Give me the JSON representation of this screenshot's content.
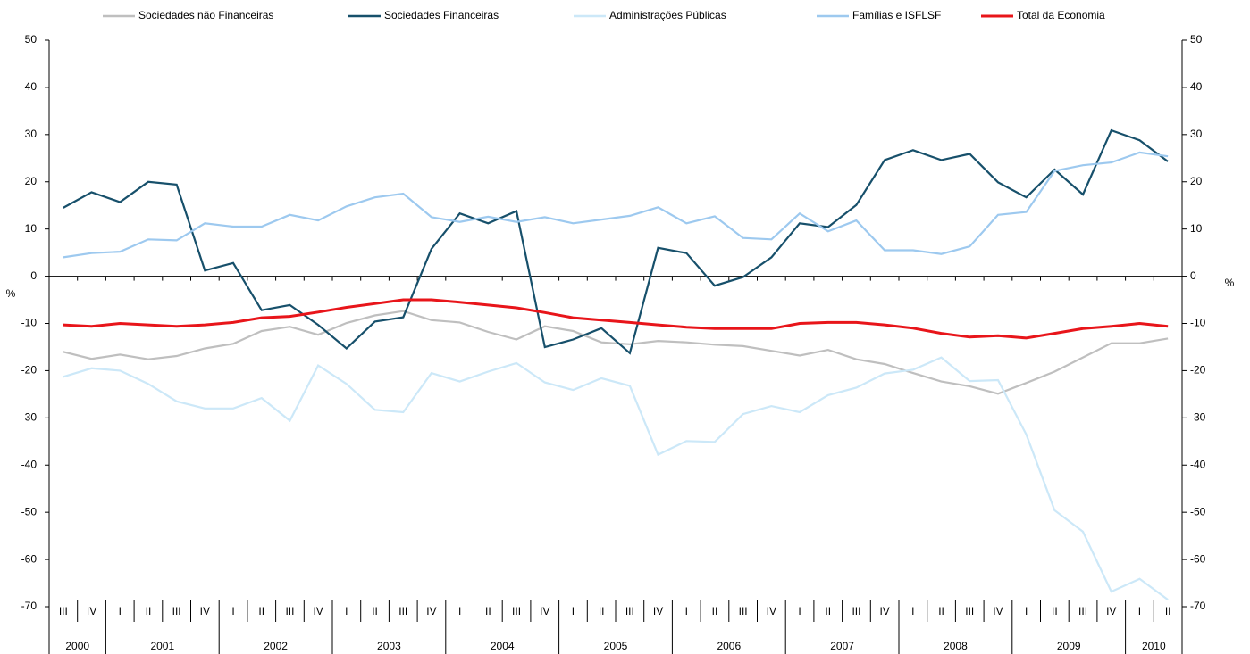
{
  "chart_data": {
    "type": "line",
    "categories": [
      "III",
      "IV",
      "I",
      "II",
      "III",
      "IV",
      "I",
      "II",
      "III",
      "IV",
      "I",
      "II",
      "III",
      "IV",
      "I",
      "II",
      "III",
      "IV",
      "I",
      "II",
      "III",
      "IV",
      "I",
      "II",
      "III",
      "IV",
      "I",
      "II",
      "III",
      "IV",
      "I",
      "II",
      "III",
      "IV",
      "I",
      "II",
      "III",
      "IV",
      "I",
      "II"
    ],
    "groups": [
      {
        "label": "2000",
        "count": 2
      },
      {
        "label": "2001",
        "count": 4
      },
      {
        "label": "2002",
        "count": 4
      },
      {
        "label": "2003",
        "count": 4
      },
      {
        "label": "2004",
        "count": 4
      },
      {
        "label": "2005",
        "count": 4
      },
      {
        "label": "2006",
        "count": 4
      },
      {
        "label": "2007",
        "count": 4
      },
      {
        "label": "2008",
        "count": 4
      },
      {
        "label": "2009",
        "count": 4
      },
      {
        "label": "2010",
        "count": 2
      }
    ],
    "y_label": "%",
    "y2_label": "%",
    "ylim": [
      -70,
      50
    ],
    "yticks": [
      -70,
      -60,
      -50,
      -40,
      -30,
      -20,
      -10,
      0,
      10,
      20,
      30,
      40,
      50
    ],
    "y2lim": [
      -70,
      50
    ],
    "y2ticks": [
      -70,
      -60,
      -50,
      -40,
      -30,
      -20,
      -10,
      0,
      10,
      20,
      30,
      40,
      50
    ],
    "legend": "top",
    "series": [
      {
        "name": "Sociedades não Financeiras",
        "color": "#bfbfbf",
        "values": [
          -16,
          -17.5,
          -16.6,
          -17.6,
          -16.9,
          -15.3,
          -14.3,
          -11.6,
          -10.7,
          -12.4,
          -9.9,
          -8.3,
          -7.4,
          -9.3,
          -9.8,
          -11.8,
          -13.4,
          -10.6,
          -11.6,
          -14,
          -14.4,
          -13.7,
          -14,
          -14.5,
          -14.8,
          -15.8,
          -16.8,
          -15.6,
          -17.6,
          -18.6,
          -20.5,
          -22.3,
          -23.3,
          -24.9,
          -22.6,
          -20.2,
          -17.2,
          -14.2,
          -14.2,
          -13.2
        ]
      },
      {
        "name": "Sociedades Financeiras",
        "color": "#17506b",
        "values": [
          14.5,
          17.8,
          15.7,
          20,
          19.4,
          1.2,
          2.8,
          -7.2,
          -6.1,
          -10.3,
          -15.3,
          -9.6,
          -8.7,
          5.8,
          13.3,
          11.2,
          13.8,
          -15,
          -13.4,
          -11,
          -16.3,
          6,
          4.9,
          -2,
          -0.2,
          4,
          11.2,
          10.4,
          15.1,
          24.6,
          26.7,
          24.6,
          25.9,
          19.9,
          16.7,
          22.6,
          17.3,
          30.9,
          28.8,
          24.3
        ]
      },
      {
        "name": "Administrações Públicas",
        "color": "#cce8f8",
        "values": [
          -21.3,
          -19.5,
          -20,
          -22.8,
          -26.5,
          -28,
          -28,
          -25.8,
          -30.6,
          -18.9,
          -22.8,
          -28.3,
          -28.8,
          -20.5,
          -22.3,
          -20.2,
          -18.4,
          -22.5,
          -24.1,
          -21.6,
          -23.2,
          -37.8,
          -34.9,
          -35.1,
          -29.2,
          -27.5,
          -28.8,
          -25.2,
          -23.6,
          -20.6,
          -19.8,
          -17.2,
          -22.2,
          -22,
          -33.5,
          -49.6,
          -54.1,
          -66.8,
          -64.1,
          -68.5
        ]
      },
      {
        "name": "Famílias e ISFLSF",
        "color": "#9dc9ef",
        "values": [
          4,
          4.9,
          5.2,
          7.8,
          7.6,
          11.2,
          10.5,
          10.5,
          13,
          11.8,
          14.8,
          16.7,
          17.5,
          12.5,
          11.5,
          12.6,
          11.5,
          12.5,
          11.2,
          12,
          12.8,
          14.6,
          11.2,
          12.7,
          8.1,
          7.8,
          13.3,
          9.5,
          11.8,
          5.5,
          5.5,
          4.7,
          6.3,
          13,
          13.6,
          22.3,
          23.5,
          24.1,
          26.2,
          25.4
        ]
      },
      {
        "name": "Total da Economia",
        "color": "#e8151a",
        "values": [
          -10.3,
          -10.6,
          -10,
          -10.3,
          -10.6,
          -10.3,
          -9.8,
          -8.8,
          -8.5,
          -7.6,
          -6.6,
          -5.8,
          -5,
          -5,
          -5.5,
          -6.1,
          -6.7,
          -7.7,
          -8.8,
          -9.3,
          -9.8,
          -10.3,
          -10.8,
          -11.1,
          -11.1,
          -11.1,
          -10,
          -9.8,
          -9.8,
          -10.3,
          -11,
          -12.1,
          -12.9,
          -12.6,
          -13.1,
          -12.1,
          -11.1,
          -10.6,
          -10,
          -10.6
        ]
      }
    ]
  }
}
